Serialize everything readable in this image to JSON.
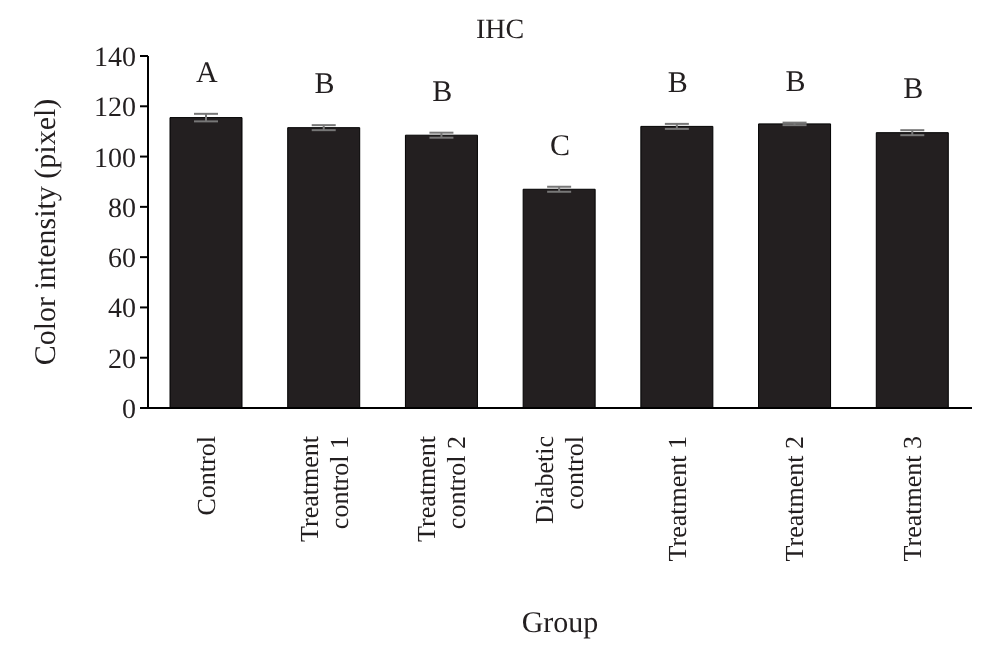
{
  "chart_data": {
    "type": "bar",
    "title": "IHC",
    "xlabel": "Group",
    "ylabel": "Color intensity (pixel)",
    "categories": [
      "Control",
      "Treatment control 1",
      "Treatment control 2",
      "Diabetic control",
      "Treatment 1",
      "Treatment 2",
      "Treatment 3"
    ],
    "values": [
      115.5,
      111.5,
      108.5,
      87,
      112,
      113,
      109.5
    ],
    "errors": [
      1.5,
      1,
      1,
      1,
      1,
      0.5,
      1
    ],
    "color": "#231f20",
    "ylim": [
      0,
      140
    ],
    "yticks": [
      0,
      20,
      40,
      60,
      80,
      100,
      120,
      140
    ],
    "grid": false,
    "annotations": [
      "A",
      "B",
      "B",
      "C",
      "B",
      "B",
      "B"
    ]
  }
}
